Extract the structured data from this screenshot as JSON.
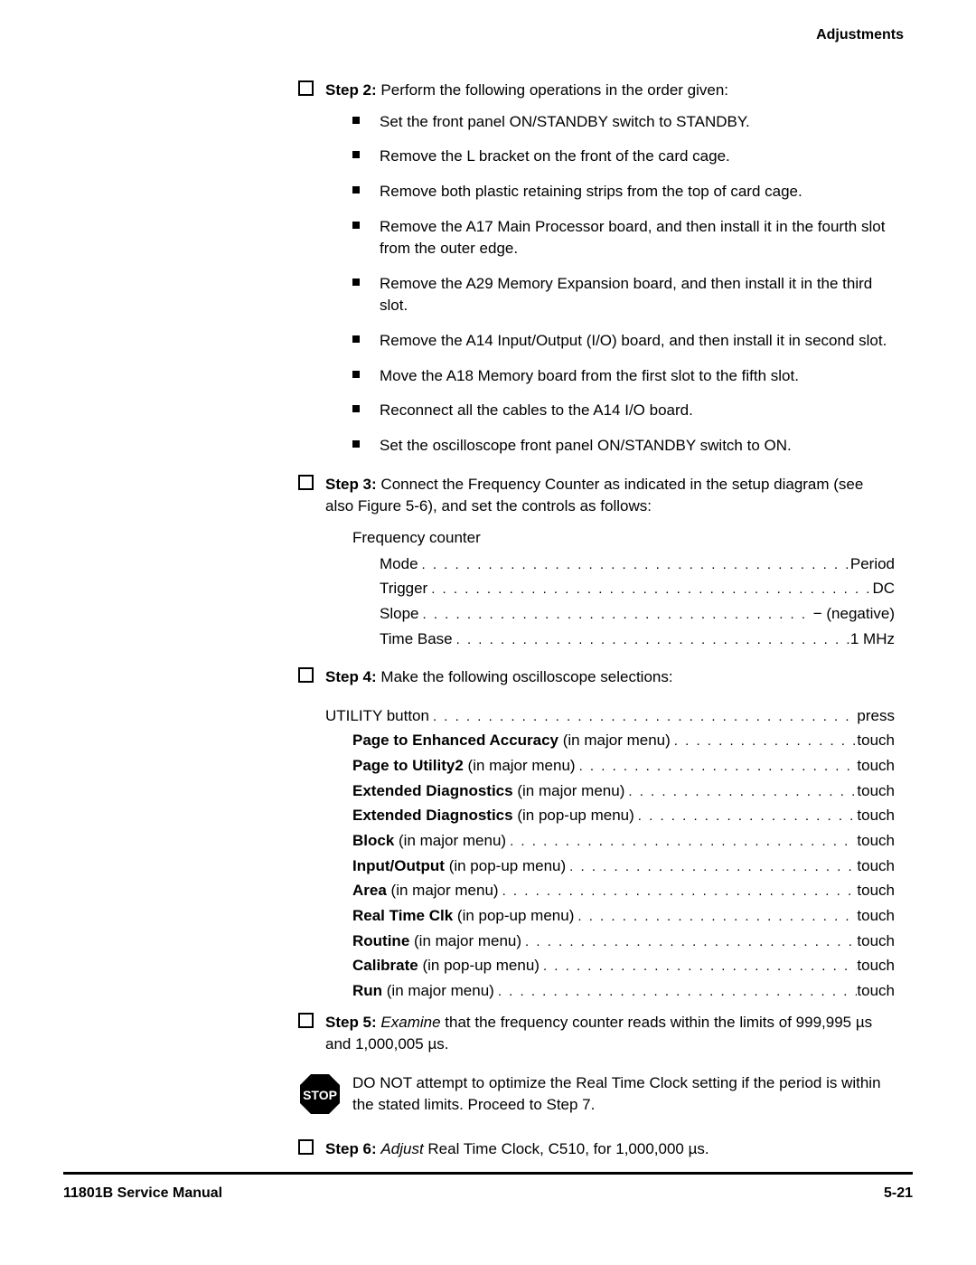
{
  "header": {
    "section": "Adjustments"
  },
  "steps": {
    "s2": {
      "label": "Step 2:",
      "text": "Perform the following operations in the order given:",
      "bullets": [
        "Set the front panel ON/STANDBY switch to STANDBY.",
        "Remove the L bracket on the front of the card cage.",
        "Remove both plastic retaining strips from the top of card cage.",
        "Remove the A17 Main Processor board, and then install it in the fourth slot from the outer edge.",
        "Remove the A29 Memory Expansion board, and then install it in the third slot.",
        "Remove the A14 Input/Output (I/O) board, and then install it in second slot.",
        "Move the A18 Memory board from the first slot to the fifth slot.",
        "Reconnect all the cables to the A14 I/O board.",
        "Set the oscilloscope front panel ON/STANDBY switch to ON."
      ]
    },
    "s3": {
      "label": "Step 3:",
      "text": "Connect the Frequency Counter as indicated in the setup diagram (see also Figure 5-6), and set the controls as follows:"
    },
    "freq_counter": {
      "title": "Frequency counter",
      "rows": [
        {
          "label": "Mode",
          "value": "Period"
        },
        {
          "label": "Trigger",
          "value": "DC"
        },
        {
          "label": "Slope",
          "value": "− (negative)"
        },
        {
          "label": "Time Base",
          "value": "1 MHz"
        }
      ]
    },
    "s4": {
      "label": "Step 4:",
      "text": "Make the following oscilloscope selections:"
    },
    "selections": {
      "first": {
        "label": "UTILITY button",
        "value": "press"
      },
      "rows": [
        {
          "bold": "Page to Enhanced Accuracy",
          "tail": " (in major menu)",
          "value": "touch"
        },
        {
          "bold": "Page to Utility2",
          "tail": " (in major menu)",
          "value": "touch"
        },
        {
          "bold": "Extended Diagnostics",
          "tail": " (in major menu)",
          "value": "touch"
        },
        {
          "bold": "Extended Diagnostics",
          "tail": " (in pop-up menu)",
          "value": "touch"
        },
        {
          "bold": "Block",
          "tail": " (in major menu)",
          "value": "touch"
        },
        {
          "bold": "Input/Output",
          "tail": " (in pop-up menu)",
          "value": "touch"
        },
        {
          "bold": "Area",
          "tail": " (in major menu)",
          "value": "touch"
        },
        {
          "bold": "Real Time Clk",
          "tail": " (in pop-up menu)",
          "value": "touch"
        },
        {
          "bold": "Routine",
          "tail": " (in major menu)",
          "value": "touch"
        },
        {
          "bold": "Calibrate",
          "tail": " (in pop-up menu)",
          "value": "touch"
        },
        {
          "bold": "Run",
          "tail": " (in major menu)",
          "value": "touch"
        }
      ]
    },
    "s5": {
      "label": "Step 5:",
      "italic": "Examine",
      "text": " that the frequency counter reads within the limits of 999,995 µs and 1,000,005 µs."
    },
    "stop": {
      "label": "STOP",
      "text": "DO NOT attempt to optimize the Real Time Clock setting if the period is within the stated limits. Proceed to Step 7."
    },
    "s6": {
      "label": "Step 6:",
      "italic": "Adjust",
      "text": " Real Time Clock, C510, for 1,000,000 µs."
    }
  },
  "footer": {
    "left": "11801B Service Manual",
    "right": "5-21"
  },
  "dots_fill": ". . . . . . . . . . . . . . . . . . . . . . . . . . . . . . . . . . . . . . . . . . . . . . . . . . . . . . . . . . . . . . . . . . . . . . . . . . . . ."
}
